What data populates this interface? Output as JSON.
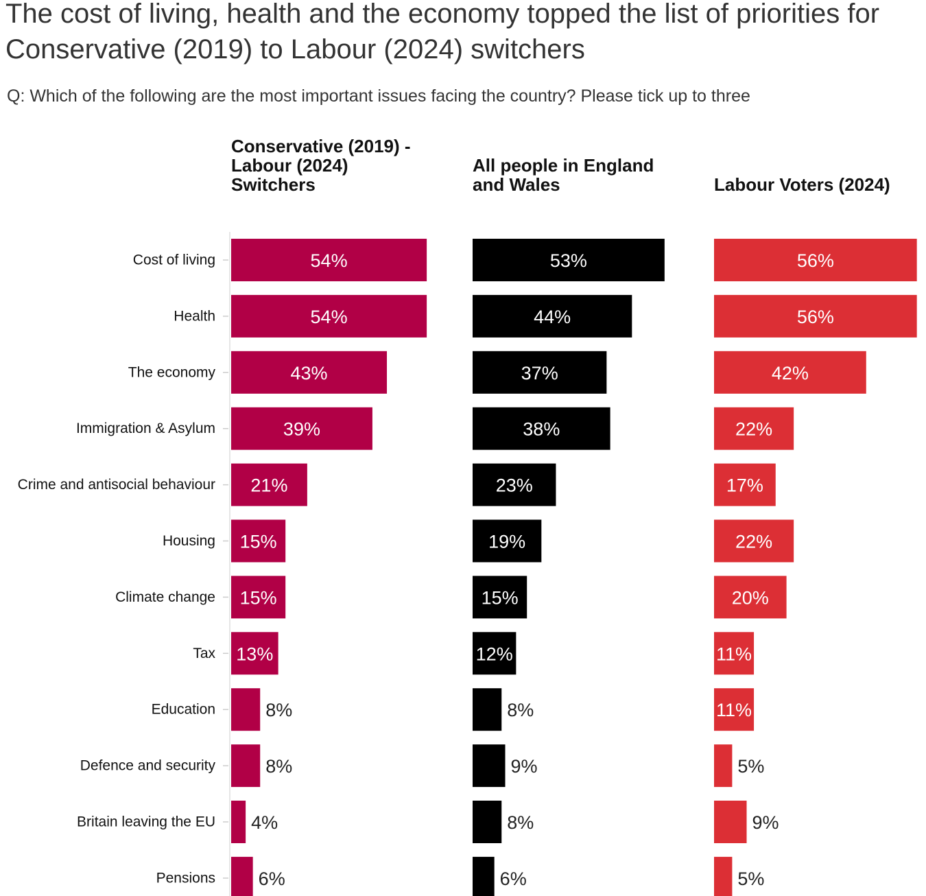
{
  "chart_data": {
    "type": "bar",
    "orientation": "horizontal",
    "title": "The cost of living, health and the economy topped the list of priorities for Conservative (2019) to Labour (2024) switchers",
    "subtitle": "Q: Which of the following are the most important issues facing the country? Please tick up to three",
    "categories": [
      "Cost of living",
      "Health",
      "The economy",
      "Immigration & Asylum",
      "Crime and antisocial behaviour",
      "Housing",
      "Climate change",
      "Tax",
      "Education",
      "Defence and security",
      "Britain leaving the EU",
      "Pensions"
    ],
    "value_suffix": "%",
    "series": [
      {
        "name": "Conservative (2019) - Labour (2024) Switchers",
        "color": "#b10046",
        "values": [
          54,
          54,
          43,
          39,
          21,
          15,
          15,
          13,
          8,
          8,
          4,
          6
        ]
      },
      {
        "name": "All people in England and Wales",
        "color": "#000000",
        "values": [
          53,
          44,
          37,
          38,
          23,
          19,
          15,
          12,
          8,
          9,
          8,
          6
        ]
      },
      {
        "name": "Labour Voters (2024)",
        "color": "#dc2f35",
        "values": [
          56,
          56,
          42,
          22,
          17,
          22,
          20,
          11,
          11,
          5,
          9,
          5
        ]
      }
    ],
    "xlim": [
      0,
      56
    ],
    "grid": false,
    "legend": "none"
  }
}
